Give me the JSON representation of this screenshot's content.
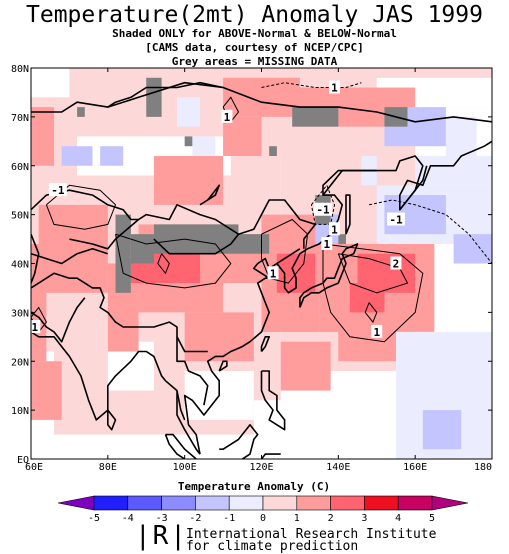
{
  "title": "Temperature(2mt) Anomaly JAS 1999",
  "subtitle_lines": [
    "Shaded ONLY for ABOVE-Normal & BELOW-Normal",
    "[CAMS data, courtesy of NCEP/CPC]",
    "Grey areas = MISSING DATA"
  ],
  "colorbar": {
    "title": "Temperature  Anomaly (C)",
    "ticks": [
      "-5",
      "-4",
      "-3",
      "-2",
      "-1",
      "0",
      "1",
      "2",
      "3",
      "4",
      "5"
    ],
    "colors": [
      "#2020ff",
      "#5a5aff",
      "#8c8cff",
      "#c4c4ff",
      "#ececff",
      "#fcd8d8",
      "#ff9c9c",
      "#ff6470",
      "#ee1020",
      "#c80060"
    ],
    "end_low": "#8000c0",
    "end_high": "#b00080"
  },
  "footer": {
    "logo": "|R|",
    "line1": "International Research Institute",
    "line2": "for climate prediction"
  },
  "map": {
    "lat_labels": [
      "80N",
      "70N",
      "60N",
      "50N",
      "40N",
      "30N",
      "20N",
      "10N",
      "EQ"
    ],
    "lon_labels": [
      "60E",
      "80E",
      "100E",
      "120E",
      "140E",
      "160E",
      "180"
    ],
    "contour_labels": [
      {
        "text": "1",
        "lon": 139,
        "lat": 76
      },
      {
        "text": "1",
        "lon": 111,
        "lat": 70
      },
      {
        "text": "-1",
        "lon": 67,
        "lat": 55
      },
      {
        "text": "-1",
        "lon": 136,
        "lat": 51
      },
      {
        "text": "-1",
        "lon": 155,
        "lat": 49
      },
      {
        "text": "1",
        "lon": 139,
        "lat": 47
      },
      {
        "text": "1",
        "lon": 137,
        "lat": 44
      },
      {
        "text": "2",
        "lon": 155,
        "lat": 40
      },
      {
        "text": "1",
        "lon": 123,
        "lat": 38
      },
      {
        "text": "1",
        "lon": 150,
        "lat": 26
      },
      {
        "text": "1",
        "lon": 61,
        "lat": 27
      }
    ]
  }
}
